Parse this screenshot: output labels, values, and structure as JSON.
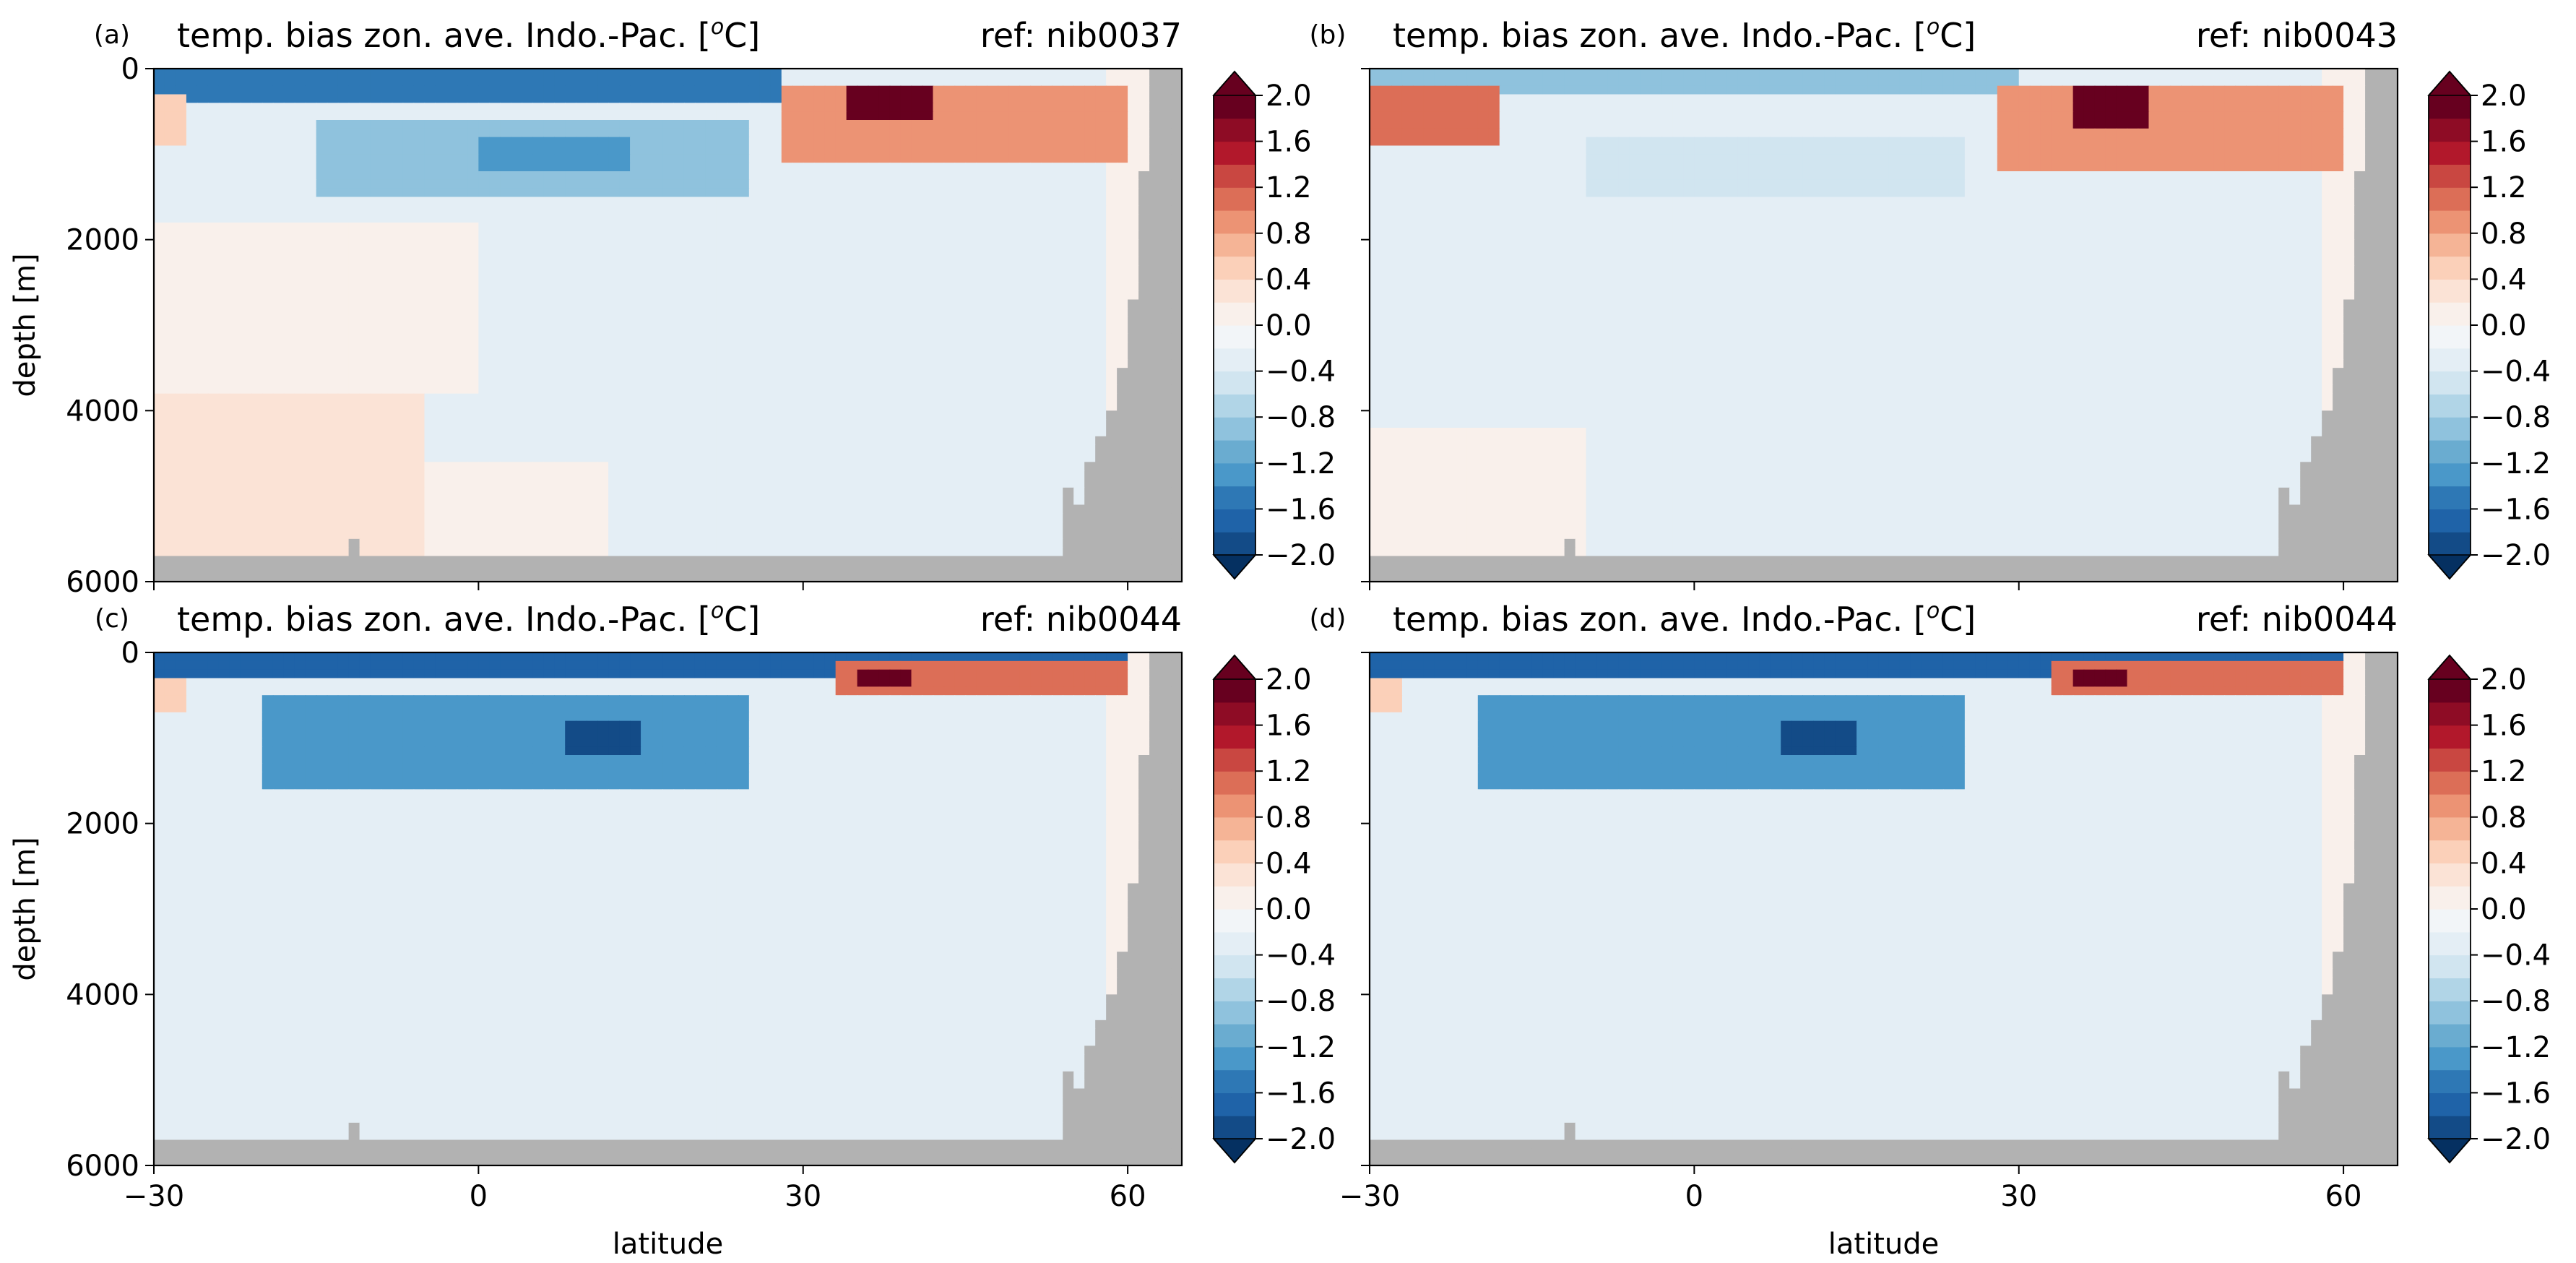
{
  "figure": {
    "panels": [
      {
        "letter": "(a)",
        "title": "temp. bias zon. ave. Indo.-Pac. [",
        "title_sup": "o",
        "title_end": "C]",
        "ref": "ref: nib0037"
      },
      {
        "letter": "(b)",
        "title": "temp. bias zon. ave. Indo.-Pac. [",
        "title_sup": "o",
        "title_end": "C]",
        "ref": "ref: nib0043"
      },
      {
        "letter": "(c)",
        "title": "temp. bias zon. ave. Indo.-Pac. [",
        "title_sup": "o",
        "title_end": "C]",
        "ref": "ref: nib0044"
      },
      {
        "letter": "(d)",
        "title": "temp. bias zon. ave. Indo.-Pac. [",
        "title_sup": "o",
        "title_end": "C]",
        "ref": "ref: nib0044"
      }
    ],
    "ylabel": "depth [m]",
    "xlabel": "latitude"
  },
  "chart_data": {
    "type": "heatmap",
    "x": {
      "label": "latitude",
      "ticks": [
        -30,
        0,
        30,
        60
      ],
      "tick_labels": [
        "−30",
        "0",
        "30",
        "60"
      ],
      "range": [
        -30,
        65
      ]
    },
    "y": {
      "label": "depth [m]",
      "ticks": [
        0,
        2000,
        4000,
        6000
      ],
      "tick_labels": [
        "0",
        "2000",
        "4000",
        "6000"
      ],
      "range": [
        0,
        6000
      ],
      "inverted": true
    },
    "colorbar": {
      "levels": [
        -2.0,
        -1.8,
        -1.6,
        -1.4,
        -1.2,
        -1.0,
        -0.8,
        -0.6,
        -0.4,
        -0.2,
        0.0,
        0.2,
        0.4,
        0.6,
        0.8,
        1.0,
        1.2,
        1.4,
        1.6,
        1.8,
        2.0
      ],
      "tick_values": [
        -2.0,
        -1.6,
        -1.2,
        -0.8,
        -0.4,
        0.0,
        0.4,
        0.8,
        1.2,
        1.6,
        2.0
      ],
      "tick_labels": [
        "−2.0",
        "−1.6",
        "−1.2",
        "−0.8",
        "−0.4",
        "0.0",
        "0.4",
        "0.8",
        "1.2",
        "1.6",
        "2.0"
      ],
      "colors": [
        "#134b87",
        "#1f63a8",
        "#2e78b5",
        "#4a98c9",
        "#6aacd0",
        "#8fc2dd",
        "#b1d5e7",
        "#d1e5f0",
        "#e4eef5",
        "#f2f5f8",
        "#f9f0eb",
        "#fbe3d6",
        "#fbd0b9",
        "#f5b496",
        "#ec9374",
        "#dc6e57",
        "#c94741",
        "#b2182b",
        "#8e0c25",
        "#67001f"
      ],
      "extend": "both",
      "under_color": "#053061",
      "over_color": "#67001f",
      "colormap": "RdBu_r"
    },
    "land_color": "#b2b2b2",
    "panels": [
      {
        "panel": "(a)",
        "ref": "nib0037",
        "features": [
          {
            "lat_range": [
              -30,
              58
            ],
            "depth_range": [
              0,
              5800
            ],
            "value": -0.25
          },
          {
            "lat_range": [
              -30,
              0
            ],
            "depth_range": [
              1800,
              3800
            ],
            "value": 0.15
          },
          {
            "lat_range": [
              -30,
              -5
            ],
            "depth_range": [
              3800,
              5800
            ],
            "value": 0.3
          },
          {
            "lat_range": [
              -5,
              12
            ],
            "depth_range": [
              4600,
              5800
            ],
            "value": 0.15
          },
          {
            "lat_range": [
              -30,
              28
            ],
            "depth_range": [
              0,
              400
            ],
            "value": -1.6
          },
          {
            "lat_range": [
              -30,
              -27
            ],
            "depth_range": [
              300,
              900
            ],
            "value": 0.4
          },
          {
            "lat_range": [
              -15,
              25
            ],
            "depth_range": [
              600,
              1500
            ],
            "value": -0.9
          },
          {
            "lat_range": [
              0,
              14
            ],
            "depth_range": [
              800,
              1200
            ],
            "value": -1.3
          },
          {
            "lat_range": [
              28,
              60
            ],
            "depth_range": [
              250,
              1100
            ],
            "value": 0.9
          },
          {
            "lat_range": [
              34,
              42
            ],
            "depth_range": [
              250,
              600
            ],
            "value": 1.9
          }
        ]
      },
      {
        "panel": "(b)",
        "ref": "nib0043",
        "features": [
          {
            "lat_range": [
              -30,
              58
            ],
            "depth_range": [
              0,
              5800
            ],
            "value": -0.25
          },
          {
            "lat_range": [
              -30,
              -10
            ],
            "depth_range": [
              4200,
              5800
            ],
            "value": 0.15
          },
          {
            "lat_range": [
              -30,
              30
            ],
            "depth_range": [
              0,
              350
            ],
            "value": -0.9
          },
          {
            "lat_range": [
              -30,
              -18
            ],
            "depth_range": [
              250,
              900
            ],
            "value": 1.0
          },
          {
            "lat_range": [
              -10,
              25
            ],
            "depth_range": [
              800,
              1500
            ],
            "value": -0.5
          },
          {
            "lat_range": [
              28,
              60
            ],
            "depth_range": [
              200,
              1200
            ],
            "value": 0.9
          },
          {
            "lat_range": [
              35,
              42
            ],
            "depth_range": [
              250,
              700
            ],
            "value": 2.0
          }
        ]
      },
      {
        "panel": "(c)",
        "ref": "nib0044",
        "features": [
          {
            "lat_range": [
              -30,
              58
            ],
            "depth_range": [
              0,
              5800
            ],
            "value": -0.35
          },
          {
            "lat_range": [
              -30,
              60
            ],
            "depth_range": [
              0,
              350
            ],
            "value": -1.7
          },
          {
            "lat_range": [
              -30,
              -27
            ],
            "depth_range": [
              300,
              700
            ],
            "value": 0.5
          },
          {
            "lat_range": [
              -20,
              25
            ],
            "depth_range": [
              500,
              1600
            ],
            "value": -1.3
          },
          {
            "lat_range": [
              8,
              15
            ],
            "depth_range": [
              800,
              1200
            ],
            "value": -2.0
          },
          {
            "lat_range": [
              33,
              60
            ],
            "depth_range": [
              150,
              500
            ],
            "value": 1.0
          },
          {
            "lat_range": [
              35,
              40
            ],
            "depth_range": [
              200,
              450
            ],
            "value": 1.9
          }
        ]
      },
      {
        "panel": "(d)",
        "ref": "nib0044",
        "features": [
          {
            "lat_range": [
              -30,
              58
            ],
            "depth_range": [
              0,
              5800
            ],
            "value": -0.35
          },
          {
            "lat_range": [
              -30,
              60
            ],
            "depth_range": [
              0,
              350
            ],
            "value": -1.7
          },
          {
            "lat_range": [
              -30,
              -27
            ],
            "depth_range": [
              300,
              700
            ],
            "value": 0.5
          },
          {
            "lat_range": [
              -20,
              25
            ],
            "depth_range": [
              500,
              1600
            ],
            "value": -1.3
          },
          {
            "lat_range": [
              8,
              15
            ],
            "depth_range": [
              800,
              1200
            ],
            "value": -2.0
          },
          {
            "lat_range": [
              33,
              60
            ],
            "depth_range": [
              150,
              500
            ],
            "value": 1.0
          },
          {
            "lat_range": [
              35,
              40
            ],
            "depth_range": [
              200,
              450
            ],
            "value": 1.9
          }
        ]
      }
    ]
  }
}
